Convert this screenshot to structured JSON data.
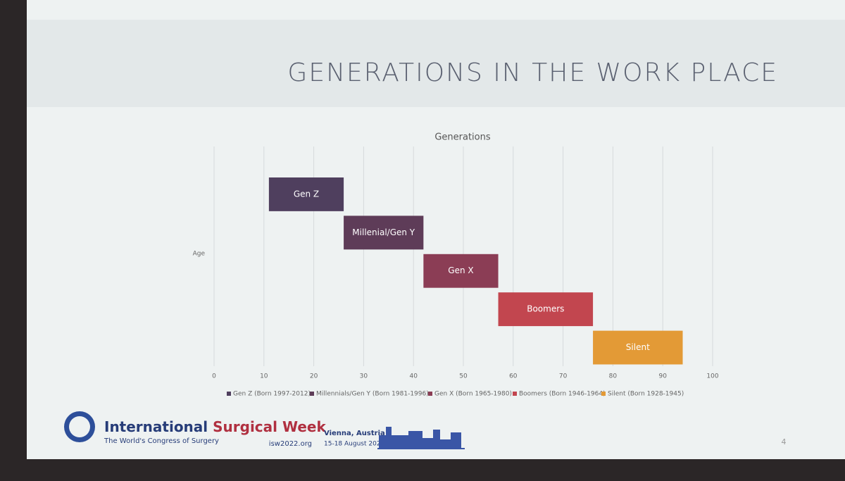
{
  "slide": {
    "title": "GENERATIONS IN THE WORK PLACE",
    "page_number": "4"
  },
  "chart_data": {
    "type": "floating-bar",
    "title": "Generations",
    "y_label": "Age",
    "xlim": [
      0,
      100
    ],
    "xticks": [
      0,
      10,
      20,
      30,
      40,
      50,
      60,
      70,
      80,
      90,
      100
    ],
    "grid": true,
    "series": [
      {
        "name": "Gen Z (Born 1997-2012)",
        "label": "Gen Z",
        "color": "#4f3f5e",
        "start": 11,
        "end": 26
      },
      {
        "name": "Millennials/Gen Y (Born 1981-1996)",
        "label": "Millenial/Gen Y",
        "color": "#5e3c58",
        "start": 26,
        "end": 42
      },
      {
        "name": "Gen X (Born 1965-1980)",
        "label": "Gen X",
        "color": "#8b3d55",
        "start": 42,
        "end": 57
      },
      {
        "name": "Boomers (Born 1946-1964)",
        "label": "Boomers",
        "color": "#c2464f",
        "start": 57,
        "end": 76
      },
      {
        "name": "Silent (Born 1928-1945)",
        "label": "Silent",
        "color": "#e39a36",
        "start": 76,
        "end": 94
      }
    ]
  },
  "footer": {
    "name_part1": "International",
    "name_part2": "Surgical Week",
    "tagline": "The World's Congress of Surgery",
    "url": "isw2022.org",
    "location": "Vienna, Austria",
    "dates": "15-18 August 2022"
  }
}
